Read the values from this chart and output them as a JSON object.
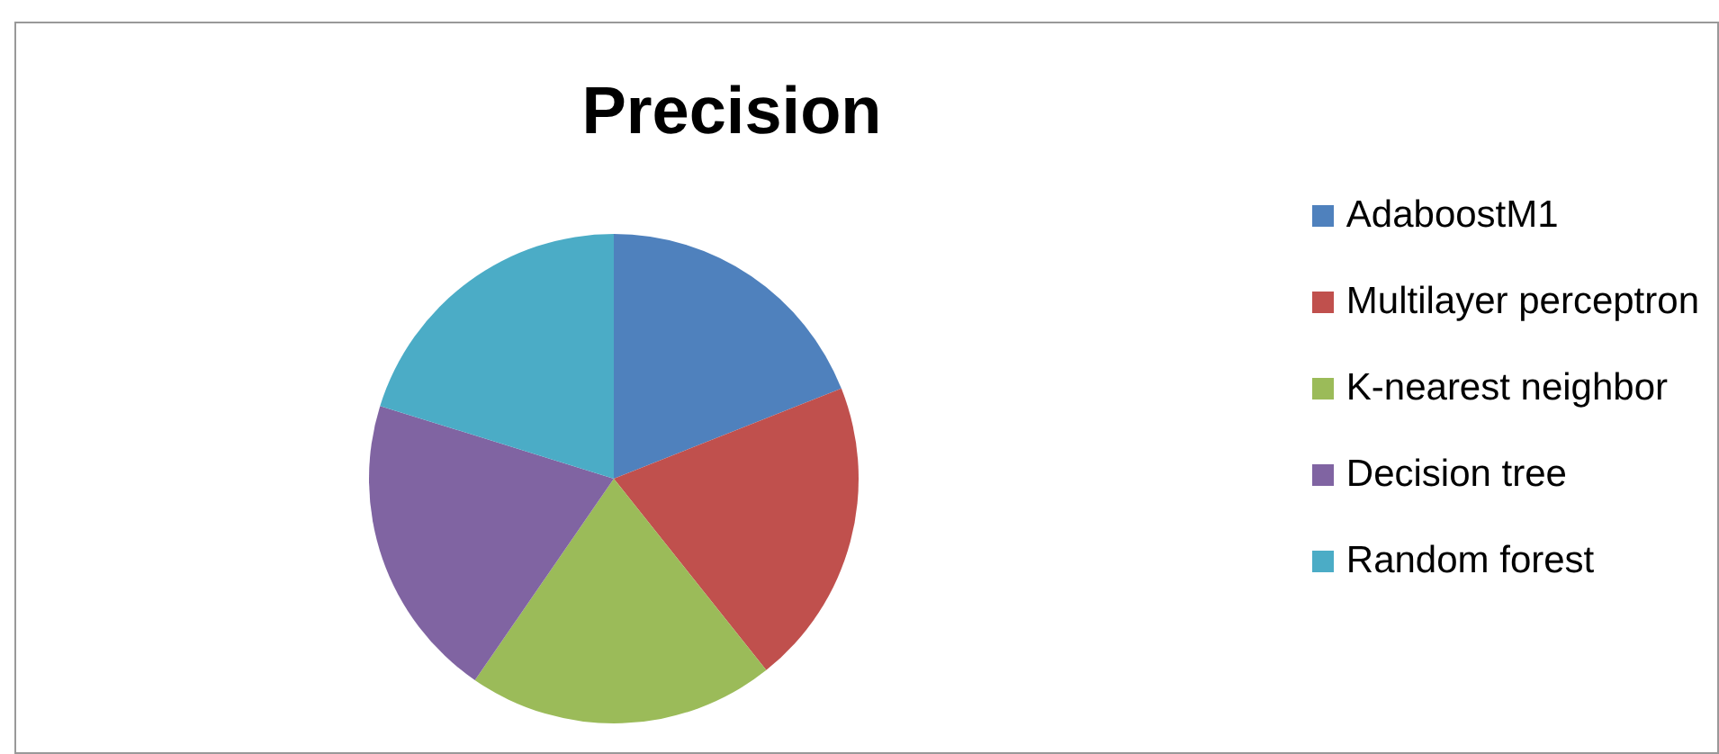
{
  "chart_data": {
    "type": "pie",
    "title": "Precision",
    "categories": [
      "AdaboostM1",
      "Multilayer perceptron",
      "K-nearest neighbor",
      "Decision tree",
      "Random forest"
    ],
    "values": [
      19,
      20.3,
      20.3,
      20.2,
      20.2
    ],
    "colors": [
      "#4f81bd",
      "#c0504d",
      "#9bbb59",
      "#8064a2",
      "#4bacc6"
    ],
    "legend": "right"
  }
}
